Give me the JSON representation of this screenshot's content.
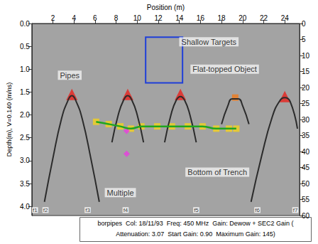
{
  "chart_data": {
    "type": "scatter",
    "xlabel": "Position (m)",
    "ylabel": "Depth(m), V=0.140 (m/ns)",
    "xlim": [
      0,
      25.4
    ],
    "xticks": [
      2,
      4,
      6,
      8,
      10,
      12,
      14,
      16,
      18,
      20,
      22,
      24
    ],
    "ylim": [
      0,
      4.2
    ],
    "yticks": [
      {
        "value": 0,
        "label": "0.0"
      },
      {
        "value": 0.5,
        "label": "0.5"
      },
      {
        "value": 1,
        "label": "1.0"
      },
      {
        "value": 1.5,
        "label": "1.5"
      },
      {
        "value": 2,
        "label": "2.0"
      },
      {
        "value": 2.5,
        "label": "2.5"
      },
      {
        "value": 3,
        "label": "3.0"
      },
      {
        "value": 3.5,
        "label": "3.5"
      },
      {
        "value": 4,
        "label": "4.0"
      }
    ],
    "y2lim": [
      0,
      60
    ],
    "y2ticks": [
      0,
      5,
      10,
      15,
      20,
      25,
      30,
      35,
      40,
      45,
      50,
      55,
      60
    ],
    "grid": false,
    "series": [
      {
        "type": "line",
        "marker": "none",
        "line_style": "solid",
        "color": "#2b2b2b",
        "x": [
          1.2,
          2.0,
          2.8,
          3.4,
          3.8,
          4.2,
          4.8,
          5.6,
          6.4
        ],
        "values": [
          3.9,
          2.95,
          2.1,
          1.7,
          1.58,
          1.7,
          2.1,
          2.95,
          3.9
        ]
      },
      {
        "type": "line",
        "marker": "none",
        "line_style": "solid",
        "color": "#2b2b2b",
        "x": [
          7.6,
          8.2,
          8.7,
          9.1,
          9.5,
          10.0,
          10.6
        ],
        "values": [
          2.6,
          2.0,
          1.68,
          1.58,
          1.68,
          2.0,
          2.6
        ]
      },
      {
        "type": "line",
        "marker": "none",
        "line_style": "solid",
        "color": "#2b2b2b",
        "x": [
          12.6,
          13.2,
          13.7,
          14.1,
          14.5,
          15.0,
          15.6
        ],
        "values": [
          2.6,
          2.0,
          1.68,
          1.6,
          1.68,
          2.0,
          2.6
        ]
      },
      {
        "type": "line",
        "marker": "none",
        "line_style": "solid",
        "color": "#2b2b2b",
        "x": [
          18.0,
          18.6,
          19.0,
          19.6,
          20.0,
          20.6
        ],
        "values": [
          2.2,
          1.8,
          1.65,
          1.65,
          1.8,
          2.2
        ]
      },
      {
        "type": "line",
        "marker": "none",
        "line_style": "solid",
        "color": "#2b2b2b",
        "x": [
          20.8,
          21.8,
          22.8,
          23.5,
          24.0,
          24.5,
          25.2
        ],
        "values": [
          3.9,
          2.9,
          2.05,
          1.7,
          1.62,
          1.7,
          2.3
        ]
      },
      {
        "type": "line",
        "marker": "none",
        "line_style": "solid",
        "color": "#1fa61f",
        "x": [
          6.1,
          7.3,
          8.4,
          9.4,
          10.4,
          11.9,
          13.3,
          14.8,
          16.2,
          17.5,
          18.7,
          19.4
        ],
        "values": [
          2.15,
          2.2,
          2.25,
          2.3,
          2.25,
          2.25,
          2.25,
          2.25,
          2.25,
          2.3,
          2.3,
          2.3
        ]
      },
      {
        "type": "scatter",
        "marker": "rect",
        "color": "#f2d21b",
        "x": [
          6.1,
          7.3,
          8.4,
          9.4,
          10.4,
          11.9,
          13.3,
          14.8,
          16.2,
          17.5,
          18.7,
          19.4
        ],
        "values": [
          2.15,
          2.2,
          2.25,
          2.3,
          2.25,
          2.25,
          2.25,
          2.25,
          2.25,
          2.3,
          2.3,
          2.3
        ]
      },
      {
        "type": "scatter",
        "marker": "triangle",
        "color": "#e8211b",
        "x": [
          3.8,
          9.1,
          14.1,
          24.0
        ],
        "values": [
          1.55,
          1.55,
          1.55,
          1.6
        ]
      },
      {
        "type": "scatter",
        "marker": "rect",
        "color": "#f07a1a",
        "x": [
          19.3
        ],
        "values": [
          1.62
        ]
      },
      {
        "type": "scatter",
        "marker": "diamond",
        "color": "#e83ce0",
        "x": [
          9.0,
          9.0
        ],
        "values": [
          2.35,
          2.85
        ]
      }
    ],
    "annotations": [
      {
        "text": "Shallow Targets",
        "x": 16.8,
        "y": 0.4
      },
      {
        "text": "Pipes",
        "x": 3.6,
        "y": 1.13
      },
      {
        "text": "Flat-topped Object",
        "x": 18.3,
        "y": 1.0
      },
      {
        "text": "Bottom of Trench",
        "x": 17.6,
        "y": 3.25
      },
      {
        "text": "Multiple",
        "x": 8.4,
        "y": 3.7
      }
    ],
    "box": {
      "x": [
        10.8,
        14.3
      ],
      "y": [
        0.3,
        1.3
      ],
      "color": "#1f3fd8"
    },
    "markers": [
      {
        "label": "f1",
        "x": 0.3,
        "y": 4.08
      },
      {
        "label": "f2",
        "x": 1.3,
        "y": 4.08
      },
      {
        "label": "f3",
        "x": 5.3,
        "y": 4.08
      },
      {
        "label": "f4",
        "x": 8.9,
        "y": 4.08
      },
      {
        "label": "f5",
        "x": 15.6,
        "y": 4.08
      },
      {
        "label": "f6",
        "x": 21.4,
        "y": 4.08
      },
      {
        "label": "f7",
        "x": 25.0,
        "y": 4.08
      }
    ],
    "info": [
      "borpipes  Col: 18/11/93  Freq: 450 MHz  Gain: Dewow + SEC2 Gain (",
      "Attenuation: 3.07  Start Gain: 0.90  Maximum Gain: 145)"
    ]
  }
}
